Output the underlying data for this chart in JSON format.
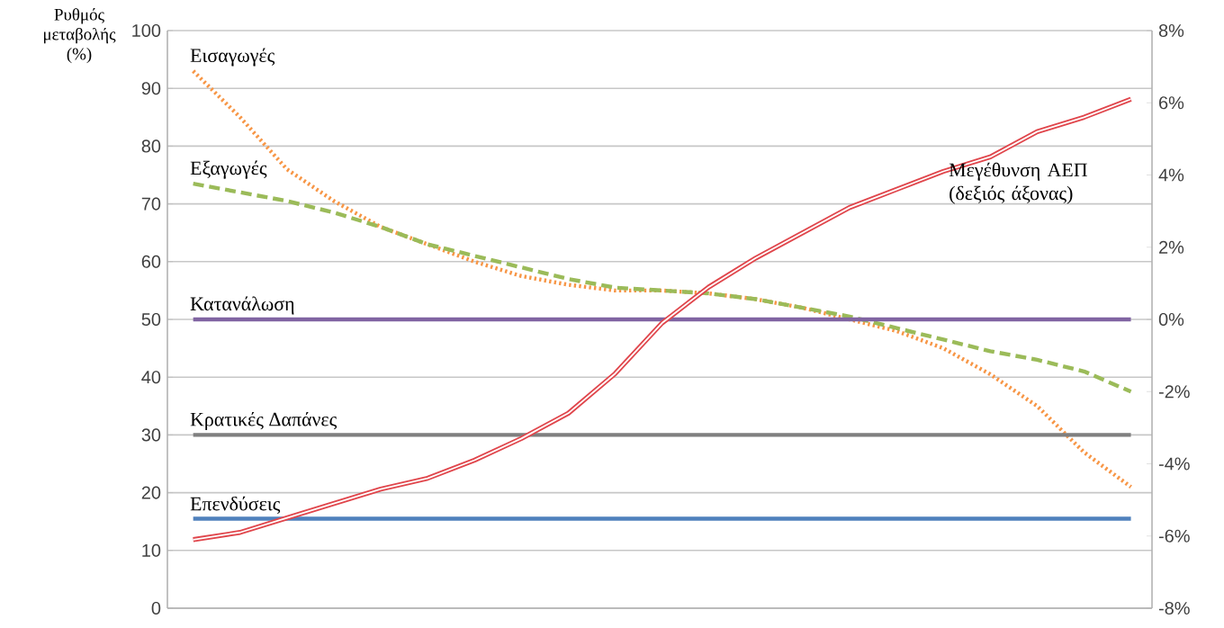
{
  "chart_data": {
    "type": "line",
    "ylabel": "Ρυθμός μεταβολής (%)",
    "categories": [
      null,
      null,
      null,
      null,
      null,
      null,
      null,
      null,
      null,
      null,
      null,
      null,
      null,
      null,
      null,
      null,
      null,
      null,
      null,
      null,
      null
    ],
    "series": [
      {
        "name": "Εισαγωγές",
        "color": "#f79646",
        "line_style": "dotted",
        "values": [
          93,
          85,
          76,
          70.5,
          66,
          63,
          60,
          57.5,
          56,
          55,
          55,
          54.5,
          53.5,
          52,
          50,
          48,
          45,
          40.5,
          35,
          27,
          21
        ]
      },
      {
        "name": "Εξαγωγές",
        "color": "#9bbb59",
        "line_style": "dashed",
        "values": [
          73.5,
          72,
          70.5,
          68.5,
          66,
          63,
          61,
          59,
          57,
          55.5,
          55,
          54.5,
          53.5,
          52,
          50.5,
          48.5,
          46.5,
          44.5,
          43,
          41,
          37.5
        ]
      },
      {
        "name": "Κατανάλωση",
        "color": "#8064a2",
        "line_style": "solid",
        "values": [
          50,
          50,
          50,
          50,
          50,
          50,
          50,
          50,
          50,
          50,
          50,
          50,
          50,
          50,
          50,
          50,
          50,
          50,
          50,
          50,
          50
        ]
      },
      {
        "name": "Κρατικές Δαπάνες",
        "color": "#7f7f7f",
        "line_style": "solid",
        "values": [
          30,
          30,
          30,
          30,
          30,
          30,
          30,
          30,
          30,
          30,
          30,
          30,
          30,
          30,
          30,
          30,
          30,
          30,
          30,
          30,
          30
        ]
      },
      {
        "name": "Επενδύσεις",
        "color": "#4f81bd",
        "line_style": "solid",
        "values": [
          15.5,
          15.5,
          15.5,
          15.5,
          15.5,
          15.5,
          15.5,
          15.5,
          15.5,
          15.5,
          15.5,
          15.5,
          15.5,
          15.5,
          15.5,
          15.5,
          15.5,
          15.5,
          15.5,
          15.5,
          15.5
        ]
      },
      {
        "name": "Μεγέθυνση ΑΕΠ (δεξιός άξονας)",
        "color": "#e0464c",
        "line_style": "solid",
        "axis": "y2",
        "values": [
          -6.1,
          -5.9,
          -5.5,
          -5.1,
          -4.7,
          -4.4,
          -3.9,
          -3.3,
          -2.6,
          -1.5,
          -0.1,
          0.9,
          1.7,
          2.4,
          3.1,
          3.6,
          4.1,
          4.5,
          5.2,
          5.6,
          6.1
        ]
      }
    ],
    "ylim": [
      0,
      100
    ],
    "yticks": [
      0,
      10,
      20,
      30,
      40,
      50,
      60,
      70,
      80,
      90,
      100
    ],
    "y2lim": [
      -8,
      8
    ],
    "y2ticks": [
      {
        "value": -8,
        "label": "-8%"
      },
      {
        "value": -6,
        "label": "-6%"
      },
      {
        "value": -4,
        "label": "-4%"
      },
      {
        "value": -2,
        "label": "-2%"
      },
      {
        "value": 0,
        "label": "0%"
      },
      {
        "value": 2,
        "label": "2%"
      },
      {
        "value": 4,
        "label": "4%"
      },
      {
        "value": 6,
        "label": "6%"
      },
      {
        "value": 8,
        "label": "8%"
      }
    ],
    "grid": "y"
  }
}
